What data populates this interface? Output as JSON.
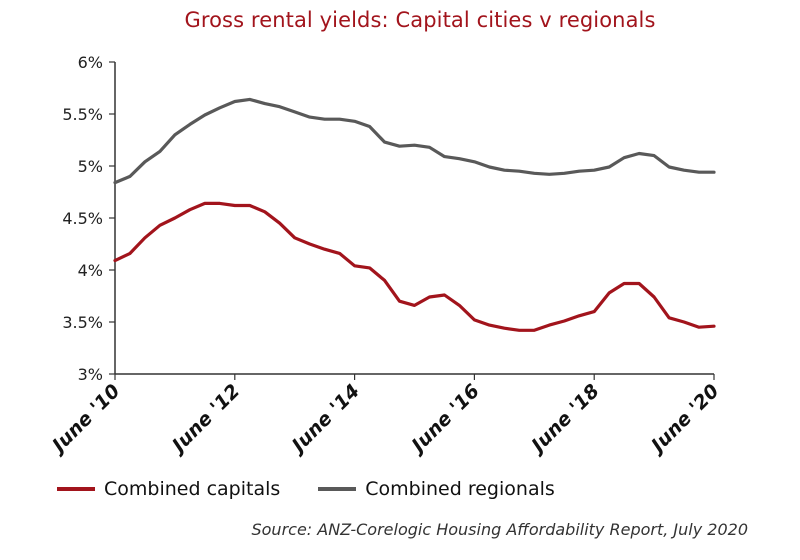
{
  "chart_data": {
    "type": "line",
    "title": "Gross rental yields: Capital cities v regionals",
    "xlabel": "",
    "ylabel": "",
    "ylim": [
      3,
      6
    ],
    "yticks": [
      "3%",
      "3.5%",
      "4%",
      "4.5%",
      "5%",
      "5.5%",
      "6%"
    ],
    "xticks": [
      "June '10",
      "June '12",
      "June '14",
      "June '16",
      "June '18",
      "June '20"
    ],
    "xrange": [
      2010.5,
      2020.5
    ],
    "grid": false,
    "legend_position": "bottom",
    "source": "Source: ANZ-Corelogic Housing Affordability Report, July 2020",
    "series": [
      {
        "name": "Combined capitals",
        "color": "#a2141c",
        "x": [
          2010.5,
          2010.75,
          2011.0,
          2011.25,
          2011.5,
          2011.75,
          2012.0,
          2012.25,
          2012.5,
          2012.75,
          2013.0,
          2013.25,
          2013.5,
          2013.75,
          2014.0,
          2014.25,
          2014.5,
          2014.75,
          2015.0,
          2015.25,
          2015.5,
          2015.75,
          2016.0,
          2016.25,
          2016.5,
          2016.75,
          2017.0,
          2017.25,
          2017.5,
          2017.75,
          2018.0,
          2018.25,
          2018.5,
          2018.75,
          2019.0,
          2019.25,
          2019.5,
          2019.75,
          2020.0,
          2020.25,
          2020.5
        ],
        "values": [
          4.09,
          4.16,
          4.31,
          4.43,
          4.5,
          4.58,
          4.64,
          4.64,
          4.62,
          4.62,
          4.56,
          4.45,
          4.31,
          4.25,
          4.2,
          4.16,
          4.04,
          4.02,
          3.9,
          3.7,
          3.66,
          3.74,
          3.76,
          3.66,
          3.52,
          3.47,
          3.44,
          3.42,
          3.42,
          3.47,
          3.51,
          3.56,
          3.6,
          3.78,
          3.87,
          3.87,
          3.74,
          3.54,
          3.5,
          3.45,
          3.46
        ]
      },
      {
        "name": "Combined regionals",
        "color": "#595959",
        "x": [
          2010.5,
          2010.75,
          2011.0,
          2011.25,
          2011.5,
          2011.75,
          2012.0,
          2012.25,
          2012.5,
          2012.75,
          2013.0,
          2013.25,
          2013.5,
          2013.75,
          2014.0,
          2014.25,
          2014.5,
          2014.75,
          2015.0,
          2015.25,
          2015.5,
          2015.75,
          2016.0,
          2016.25,
          2016.5,
          2016.75,
          2017.0,
          2017.25,
          2017.5,
          2017.75,
          2018.0,
          2018.25,
          2018.5,
          2018.75,
          2019.0,
          2019.25,
          2019.5,
          2019.75,
          2020.0,
          2020.25,
          2020.5
        ],
        "values": [
          4.84,
          4.9,
          5.04,
          5.14,
          5.3,
          5.4,
          5.49,
          5.56,
          5.62,
          5.64,
          5.6,
          5.57,
          5.52,
          5.47,
          5.45,
          5.45,
          5.43,
          5.38,
          5.23,
          5.19,
          5.2,
          5.18,
          5.09,
          5.07,
          5.04,
          4.99,
          4.96,
          4.95,
          4.93,
          4.92,
          4.93,
          4.95,
          4.96,
          4.99,
          5.08,
          5.12,
          5.1,
          4.99,
          4.96,
          4.94,
          4.94
        ]
      }
    ]
  }
}
